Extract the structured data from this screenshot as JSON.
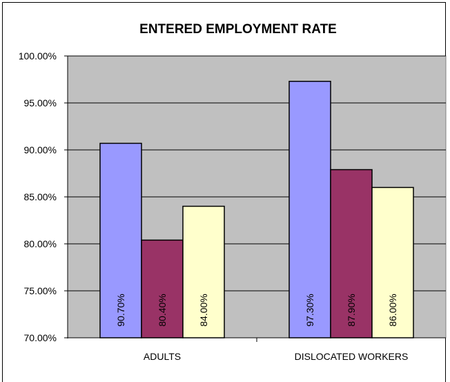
{
  "chart_data": {
    "type": "bar",
    "title": "ENTERED EMPLOYMENT RATE",
    "xlabel": "",
    "ylabel": "",
    "categories": [
      "ADULTS",
      "DISLOCATED WORKERS"
    ],
    "series": [
      {
        "values": [
          90.7,
          97.3
        ],
        "labels": [
          "90.70%",
          "97.30%"
        ],
        "color": "#9999ff"
      },
      {
        "values": [
          80.4,
          87.9
        ],
        "labels": [
          "80.40%",
          "87.90%"
        ],
        "color": "#993366"
      },
      {
        "values": [
          84.0,
          86.0
        ],
        "labels": [
          "84.00%",
          "86.00%"
        ],
        "color": "#ffffcc"
      }
    ],
    "ylim": [
      70,
      100
    ],
    "yticks": [
      "70.00%",
      "75.00%",
      "80.00%",
      "85.00%",
      "90.00%",
      "95.00%",
      "100.00%"
    ],
    "grid": true,
    "plot_background": "#c0c0c0",
    "legend": "none"
  }
}
